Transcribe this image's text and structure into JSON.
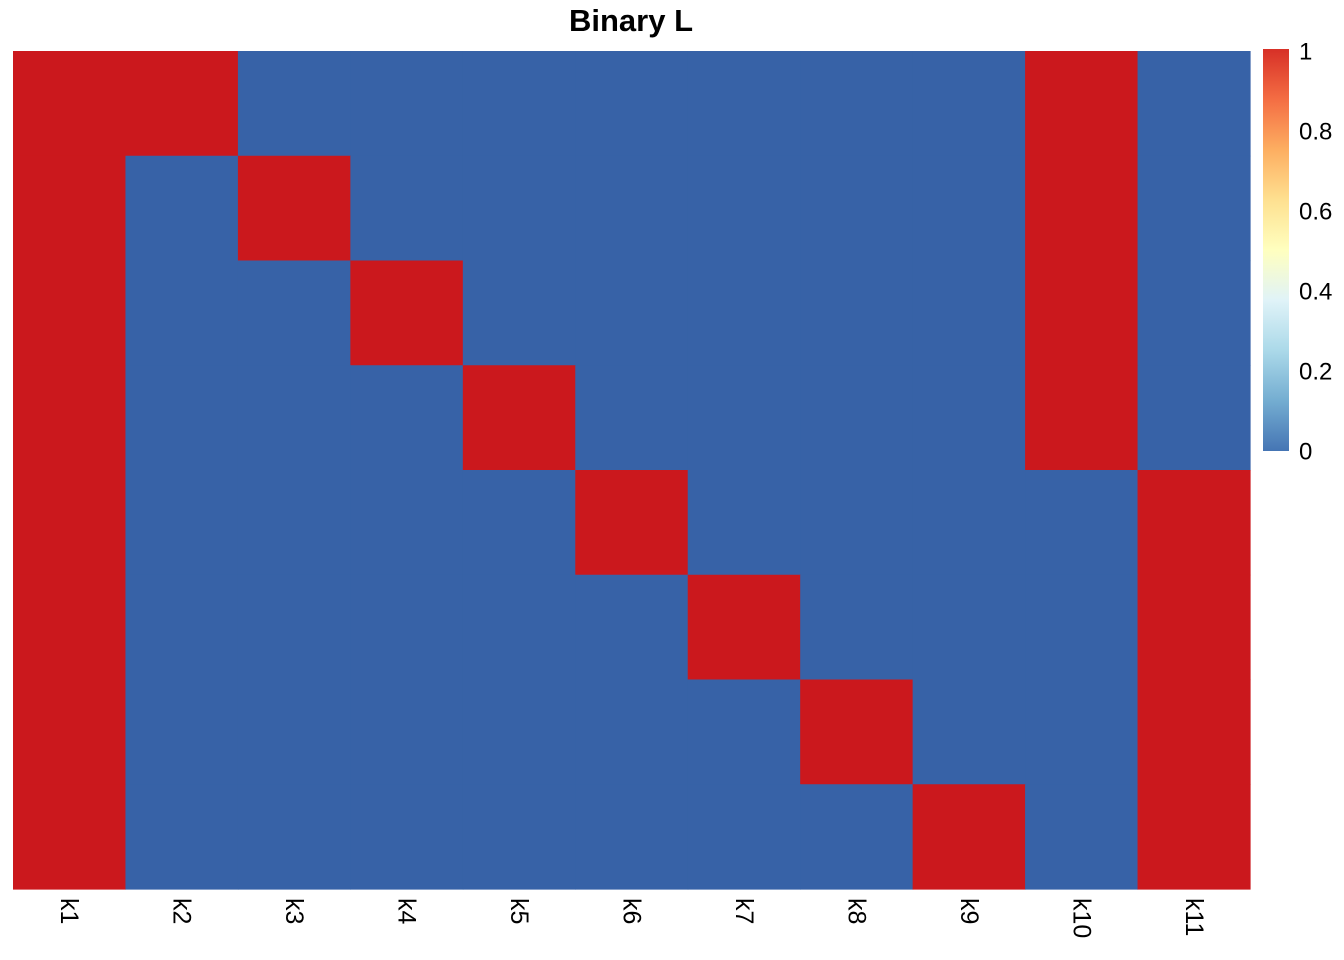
{
  "chart_data": {
    "type": "heatmap",
    "title": "Binary L",
    "columns": [
      "k1",
      "k2",
      "k3",
      "k4",
      "k5",
      "k6",
      "k7",
      "k8",
      "k9",
      "k10",
      "k11"
    ],
    "matrix": [
      [
        1,
        1,
        0,
        0,
        0,
        0,
        0,
        0,
        0,
        1,
        0
      ],
      [
        1,
        0,
        1,
        0,
        0,
        0,
        0,
        0,
        0,
        1,
        0
      ],
      [
        1,
        0,
        0,
        1,
        0,
        0,
        0,
        0,
        0,
        1,
        0
      ],
      [
        1,
        0,
        0,
        0,
        1,
        0,
        0,
        0,
        0,
        1,
        0
      ],
      [
        1,
        0,
        0,
        0,
        0,
        1,
        0,
        0,
        0,
        0,
        1
      ],
      [
        1,
        0,
        0,
        0,
        0,
        0,
        1,
        0,
        0,
        0,
        1
      ],
      [
        1,
        0,
        0,
        0,
        0,
        0,
        0,
        1,
        0,
        0,
        1
      ],
      [
        1,
        0,
        0,
        0,
        0,
        0,
        0,
        0,
        1,
        0,
        1
      ]
    ],
    "legend": {
      "range": [
        0,
        1
      ],
      "ticks": [
        "0",
        "0.2",
        "0.4",
        "0.6",
        "0.8",
        "1"
      ],
      "placement": "right"
    },
    "colors": {
      "low": "#3762a7",
      "high": "#cb181d",
      "scale": [
        "#4575b4",
        "#74add1",
        "#abd9e9",
        "#e0f3f8",
        "#ffffbf",
        "#fee090",
        "#fdae61",
        "#f46d43",
        "#d73027"
      ]
    }
  }
}
